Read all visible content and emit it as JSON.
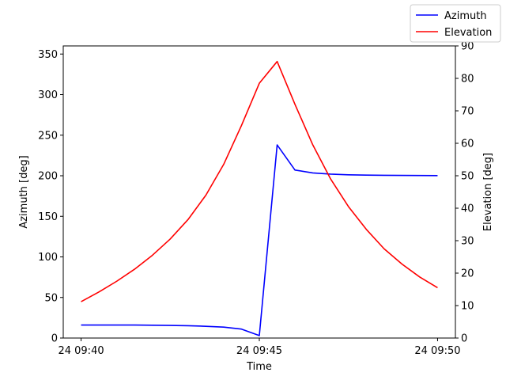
{
  "chart_data": {
    "type": "line",
    "xlabel": "Time",
    "ylabel_left": "Azimuth [deg]",
    "ylabel_right": "Elevation [deg]",
    "x_ticks": [
      "24 09:40",
      "24 09:45",
      "24 09:50"
    ],
    "x_minutes": [
      0,
      0.5,
      1,
      1.5,
      2,
      2.5,
      3,
      3.5,
      4,
      4.5,
      5,
      5.5,
      6,
      6.5,
      7,
      7.5,
      8,
      8.5,
      9,
      9.5,
      10
    ],
    "xlim_minutes": [
      -0.5,
      10.5
    ],
    "y_left_lim": [
      0,
      360
    ],
    "y_left_ticks": [
      0,
      50,
      100,
      150,
      200,
      250,
      300,
      350
    ],
    "y_right_lim": [
      0,
      90
    ],
    "y_right_ticks": [
      0,
      10,
      20,
      30,
      40,
      50,
      60,
      70,
      80,
      90
    ],
    "grid": false,
    "legend_position": "top-right",
    "series": [
      {
        "name": "Azimuth",
        "axis": "left",
        "color": "#0000ff",
        "values": [
          16,
          16,
          16,
          16,
          15.8,
          15.5,
          15.2,
          14.5,
          13.5,
          11,
          3,
          238,
          207,
          203.5,
          202,
          201.2,
          200.8,
          200.6,
          200.4,
          200.3,
          200.2
        ]
      },
      {
        "name": "Elevation",
        "axis": "right",
        "color": "#ff0000",
        "values": [
          11.2,
          14.2,
          17.5,
          21.2,
          25.5,
          30.5,
          36.5,
          44,
          53.5,
          65.5,
          78.5,
          85.2,
          72,
          59.5,
          49,
          40.5,
          33.5,
          27.5,
          22.8,
          18.8,
          15.5
        ]
      }
    ]
  }
}
